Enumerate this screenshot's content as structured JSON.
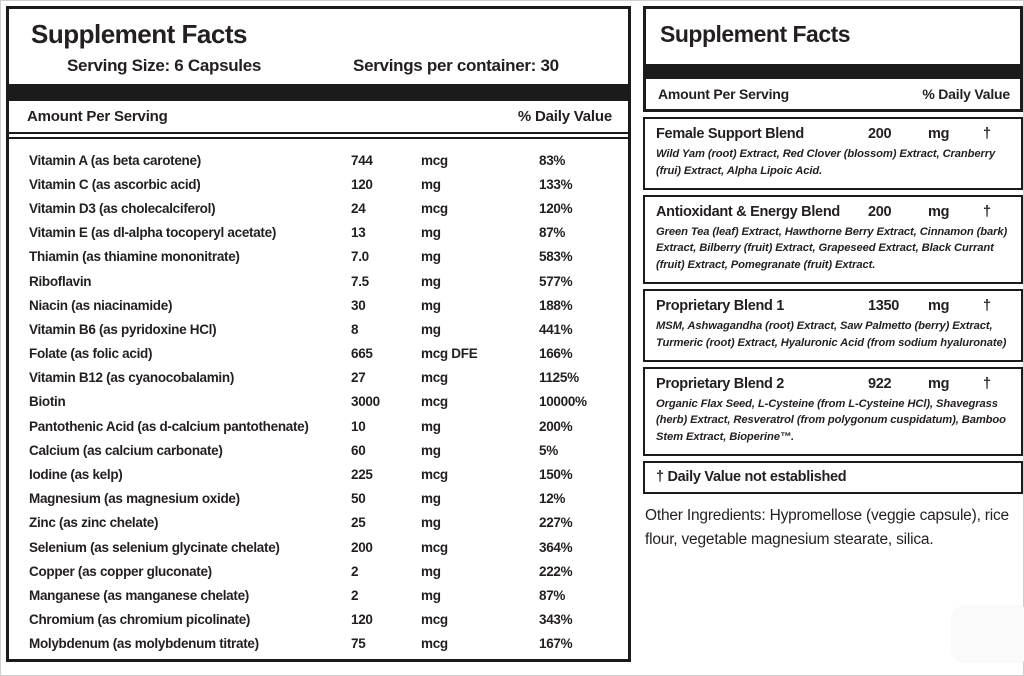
{
  "colors": {
    "ink": "#231f20",
    "bar": "#1b1b1b",
    "background": "#ffffff"
  },
  "left_panel": {
    "title": "Supplement Facts",
    "serving_size": "Serving Size: 6 Capsules",
    "servings_per_container": "Servings per container: 30",
    "amount_header": "Amount Per Serving",
    "dv_header": "% Daily Value",
    "rows": [
      {
        "name": "Vitamin A (as beta carotene)",
        "amount": "744",
        "unit": "mcg",
        "dv": "83%"
      },
      {
        "name": "Vitamin C (as ascorbic acid)",
        "amount": "120",
        "unit": "mg",
        "dv": "133%"
      },
      {
        "name": "Vitamin D3 (as cholecalciferol)",
        "amount": "24",
        "unit": "mcg",
        "dv": "120%"
      },
      {
        "name": "Vitamin E (as dl-alpha tocoperyl acetate)",
        "amount": "13",
        "unit": "mg",
        "dv": "87%"
      },
      {
        "name": "Thiamin (as thiamine mononitrate)",
        "amount": "7.0",
        "unit": "mg",
        "dv": "583%"
      },
      {
        "name": "Riboflavin",
        "amount": "7.5",
        "unit": "mg",
        "dv": "577%"
      },
      {
        "name": "Niacin (as niacinamide)",
        "amount": "30",
        "unit": "mg",
        "dv": "188%"
      },
      {
        "name": "Vitamin B6 (as pyridoxine HCl)",
        "amount": "8",
        "unit": "mg",
        "dv": "441%"
      },
      {
        "name": "Folate (as folic acid)",
        "amount": "665",
        "unit": "mcg DFE",
        "dv": "166%"
      },
      {
        "name": "Vitamin B12 (as cyanocobalamin)",
        "amount": "27",
        "unit": "mcg",
        "dv": "1125%"
      },
      {
        "name": "Biotin",
        "amount": "3000",
        "unit": "mcg",
        "dv": "10000%"
      },
      {
        "name": "Pantothenic Acid (as d-calcium pantothenate)",
        "amount": "10",
        "unit": "mg",
        "dv": "200%"
      },
      {
        "name": "Calcium (as calcium carbonate)",
        "amount": "60",
        "unit": "mg",
        "dv": "5%"
      },
      {
        "name": "Iodine (as kelp)",
        "amount": "225",
        "unit": "mcg",
        "dv": "150%"
      },
      {
        "name": "Magnesium (as magnesium oxide)",
        "amount": "50",
        "unit": "mg",
        "dv": "12%"
      },
      {
        "name": "Zinc (as zinc chelate)",
        "amount": "25",
        "unit": "mg",
        "dv": "227%"
      },
      {
        "name": "Selenium (as selenium glycinate chelate)",
        "amount": "200",
        "unit": "mcg",
        "dv": "364%"
      },
      {
        "name": "Copper (as copper gluconate)",
        "amount": "2",
        "unit": "mg",
        "dv": "222%"
      },
      {
        "name": "Manganese (as manganese chelate)",
        "amount": "2",
        "unit": "mg",
        "dv": "87%"
      },
      {
        "name": "Chromium (as chromium picolinate)",
        "amount": "120",
        "unit": "mcg",
        "dv": "343%"
      },
      {
        "name": "Molybdenum (as molybdenum titrate)",
        "amount": "75",
        "unit": "mcg",
        "dv": "167%"
      }
    ]
  },
  "right_panel": {
    "title": "Supplement Facts",
    "amount_header": "Amount Per Serving",
    "dv_header": "% Daily Value",
    "blends": [
      {
        "name": "Female Support Blend",
        "amount": "200",
        "unit": "mg",
        "dv": "†",
        "ingredients": "Wild Yam (root) Extract, Red Clover (blossom) Extract, Cranberry (frui) Extract, Alpha Lipoic Acid."
      },
      {
        "name": "Antioxidant & Energy Blend",
        "amount": "200",
        "unit": "mg",
        "dv": "†",
        "ingredients": "Green Tea (leaf) Extract, Hawthorne Berry Extract, Cinnamon (bark) Extract, Bilberry (fruit) Extract, Grapeseed Extract, Black Currant (fruit) Extract, Pomegranate (fruit) Extract."
      },
      {
        "name": "Proprietary Blend 1",
        "amount": "1350",
        "unit": "mg",
        "dv": "†",
        "ingredients": "MSM, Ashwagandha (root) Extract, Saw Palmetto (berry) Extract, Turmeric (root) Extract, Hyaluronic Acid (from sodium hyaluronate)"
      },
      {
        "name": "Proprietary Blend 2",
        "amount": "922",
        "unit": "mg",
        "dv": "†",
        "ingredients": "Organic Flax Seed, L-Cysteine (from L-Cysteine HCl), Shavegrass (herb) Extract, Resveratrol (from polygonum cuspidatum), Bamboo Stem Extract, Bioperine™."
      }
    ],
    "footnote": "† Daily Value not established",
    "other_ingredients": "Other Ingredients: Hypromellose (veggie capsule), rice flour, vegetable magnesium stearate, silica."
  }
}
